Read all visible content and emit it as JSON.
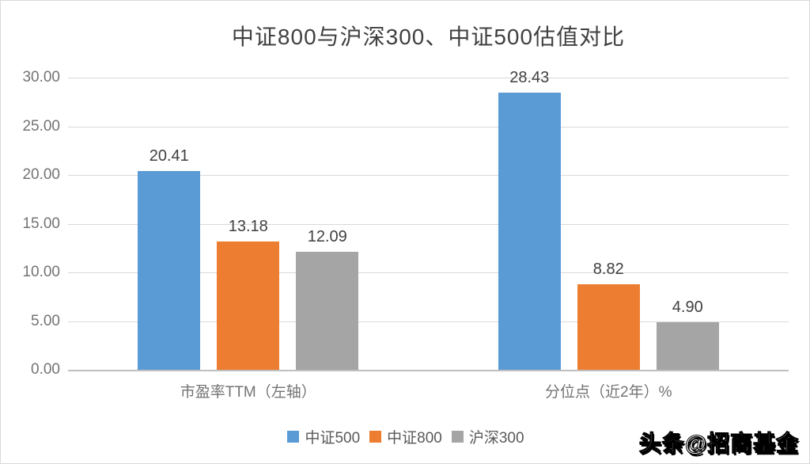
{
  "frame": {
    "background": "#ffffff",
    "border_color": "#d9d9d9"
  },
  "chart_data": {
    "type": "bar",
    "title": "中证800与沪深300、中证500估值对比",
    "categories": [
      "市盈率TTM（左轴）",
      "分位点（近2年）%"
    ],
    "series": [
      {
        "name": "中证500",
        "color": "#5B9BD5",
        "values": [
          20.41,
          28.43
        ],
        "labels": [
          "20.41",
          "28.43"
        ]
      },
      {
        "name": "中证800",
        "color": "#ED7D31",
        "values": [
          13.18,
          8.82
        ],
        "labels": [
          "13.18",
          "8.82"
        ]
      },
      {
        "name": "沪深300",
        "color": "#A5A5A5",
        "values": [
          12.09,
          4.9
        ],
        "labels": [
          "12.09",
          "4.90"
        ]
      }
    ],
    "ylim": [
      0,
      30
    ],
    "y_ticks": [
      "30.00",
      "25.00",
      "20.00",
      "15.00",
      "10.00",
      "5.00",
      "0.00"
    ],
    "grid": true,
    "gridline_color": "#d9d9d9",
    "axis_line_color": "#bfbfbf",
    "legend_position": "bottom",
    "legend": [
      "中证500",
      "中证800",
      "沪深300"
    ],
    "text_colors": {
      "title": "#404040",
      "data_label": "#404040",
      "tick": "#737373",
      "legend": "#595959"
    }
  },
  "watermark": {
    "text": "头条@招商基金"
  }
}
